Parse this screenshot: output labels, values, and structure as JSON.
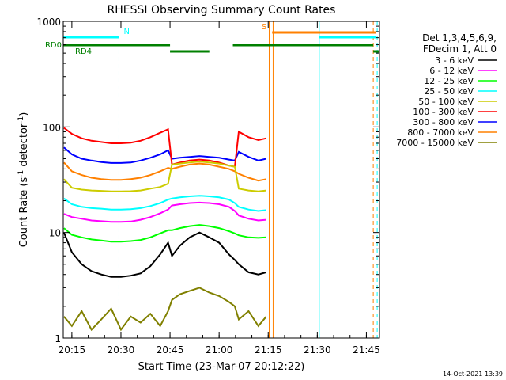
{
  "chart_data": {
    "type": "line",
    "title": "RHESSI Observing Summary Count Rates",
    "xlabel": "Start Time (23-Mar-07 20:12:22)",
    "ylabel_main": "Count Rate (s",
    "ylabel_sup1": "-1",
    "ylabel_mid": " detector",
    "ylabel_sup2": "-1",
    "ylabel_end": ")",
    "y_scale": "log",
    "ylim": [
      1,
      1000
    ],
    "xlim": [
      20.2062,
      21.8167
    ],
    "x_ticks": [
      {
        "value": 20.25,
        "label": "20:15"
      },
      {
        "value": 20.5,
        "label": "20:30"
      },
      {
        "value": 20.75,
        "label": "20:45"
      },
      {
        "value": 21.0,
        "label": "21:00"
      },
      {
        "value": 21.25,
        "label": "21:15"
      },
      {
        "value": 21.5,
        "label": "21:30"
      },
      {
        "value": 21.75,
        "label": "21:45"
      }
    ],
    "y_ticks": [
      {
        "value": 1,
        "label": "1"
      },
      {
        "value": 10,
        "label": "10"
      },
      {
        "value": 100,
        "label": "100"
      },
      {
        "value": 1000,
        "label": "1000"
      }
    ],
    "legend_header": [
      "Det 1,3,4,5,6,9,",
      "FDecim 1, Att 0"
    ],
    "legend_position": "right",
    "series": [
      {
        "name": "3 - 6 keV",
        "color": "#000000",
        "x": [
          20.21,
          20.25,
          20.3,
          20.35,
          20.4,
          20.45,
          20.5,
          20.55,
          20.6,
          20.65,
          20.7,
          20.74,
          20.76,
          20.8,
          20.85,
          20.9,
          20.95,
          21.0,
          21.05,
          21.08,
          21.1,
          21.15,
          21.2,
          21.24
        ],
        "y": [
          10,
          6.5,
          5,
          4.3,
          4,
          3.8,
          3.8,
          3.9,
          4.1,
          4.8,
          6.2,
          8,
          6,
          7.5,
          9,
          10,
          9,
          8,
          6.2,
          5.5,
          5,
          4.2,
          4,
          4.2
        ]
      },
      {
        "name": "6 - 12 keV",
        "color": "#ff00ff",
        "x": [
          20.21,
          20.25,
          20.3,
          20.35,
          20.4,
          20.45,
          20.5,
          20.55,
          20.6,
          20.65,
          20.7,
          20.74,
          20.76,
          20.8,
          20.85,
          20.9,
          20.95,
          21.0,
          21.05,
          21.08,
          21.1,
          21.15,
          21.2,
          21.24
        ],
        "y": [
          15,
          14,
          13.5,
          13,
          12.8,
          12.6,
          12.6,
          12.7,
          13.2,
          14,
          15.2,
          16.5,
          18,
          18.5,
          19,
          19.2,
          19,
          18.5,
          17.5,
          16,
          14.5,
          13.5,
          13,
          13.2
        ]
      },
      {
        "name": "12 - 25 keV",
        "color": "#00ff00",
        "x": [
          20.21,
          20.25,
          20.3,
          20.35,
          20.4,
          20.45,
          20.5,
          20.55,
          20.6,
          20.65,
          20.7,
          20.74,
          20.76,
          20.8,
          20.85,
          20.9,
          20.95,
          21.0,
          21.05,
          21.08,
          21.1,
          21.15,
          21.2,
          21.24
        ],
        "y": [
          11,
          9.5,
          9,
          8.6,
          8.4,
          8.2,
          8.2,
          8.3,
          8.5,
          9,
          9.8,
          10.5,
          10.5,
          11,
          11.5,
          11.8,
          11.5,
          11,
          10.3,
          9.8,
          9.4,
          9,
          8.9,
          9
        ]
      },
      {
        "name": "25 - 50 keV",
        "color": "#00ffff",
        "x": [
          20.21,
          20.25,
          20.3,
          20.35,
          20.4,
          20.45,
          20.5,
          20.55,
          20.6,
          20.65,
          20.7,
          20.74,
          20.76,
          20.8,
          20.85,
          20.9,
          20.95,
          21.0,
          21.05,
          21.08,
          21.1,
          21.15,
          21.2,
          21.24
        ],
        "y": [
          21,
          18.5,
          17.5,
          17,
          16.8,
          16.5,
          16.5,
          16.6,
          17,
          17.8,
          19,
          20.5,
          21,
          21.5,
          22,
          22.3,
          22,
          21.5,
          20.5,
          19,
          17.5,
          16.5,
          16,
          16.3
        ]
      },
      {
        "name": "50 - 100 keV",
        "color": "#cccc00",
        "x": [
          20.21,
          20.25,
          20.3,
          20.35,
          20.4,
          20.45,
          20.5,
          20.55,
          20.6,
          20.65,
          20.7,
          20.74,
          20.76,
          20.8,
          20.85,
          20.9,
          20.95,
          21.0,
          21.05,
          21.08,
          21.1,
          21.15,
          21.2,
          21.24
        ],
        "y": [
          32,
          26.5,
          25.5,
          25,
          24.8,
          24.5,
          24.5,
          24.6,
          25,
          26,
          27,
          29,
          44,
          45,
          46,
          47,
          46,
          45,
          43,
          42,
          26,
          25,
          24.5,
          25
        ]
      },
      {
        "name": "100 - 300 keV",
        "color": "#ff0000",
        "x": [
          20.21,
          20.25,
          20.3,
          20.35,
          20.4,
          20.45,
          20.5,
          20.55,
          20.6,
          20.65,
          20.7,
          20.74,
          20.76,
          20.8,
          20.85,
          20.9,
          20.95,
          21.0,
          21.05,
          21.08,
          21.1,
          21.15,
          21.2,
          21.24
        ],
        "y": [
          98,
          86,
          78,
          74,
          72,
          70,
          70,
          71,
          74,
          80,
          88,
          95,
          44,
          46,
          48,
          49,
          48,
          46,
          43,
          42,
          90,
          80,
          75,
          78
        ]
      },
      {
        "name": "300 - 800 keV",
        "color": "#0000ff",
        "x": [
          20.21,
          20.25,
          20.3,
          20.35,
          20.4,
          20.45,
          20.5,
          20.55,
          20.6,
          20.65,
          20.7,
          20.74,
          20.76,
          20.8,
          20.85,
          20.9,
          20.95,
          21.0,
          21.05,
          21.08,
          21.1,
          21.15,
          21.2,
          21.24
        ],
        "y": [
          64,
          55,
          50,
          48,
          46.5,
          45.5,
          45.5,
          46,
          48,
          51,
          55,
          60,
          50,
          51,
          52,
          53,
          52,
          51,
          49,
          48,
          58,
          52,
          48,
          50
        ]
      },
      {
        "name": "800 - 7000 keV",
        "color": "#ff8000",
        "x": [
          20.21,
          20.25,
          20.3,
          20.35,
          20.4,
          20.45,
          20.5,
          20.55,
          20.6,
          20.65,
          20.7,
          20.74,
          20.76,
          20.8,
          20.85,
          20.9,
          20.95,
          21.0,
          21.05,
          21.08,
          21.1,
          21.15,
          21.2,
          21.24
        ],
        "y": [
          46,
          38,
          35,
          33,
          32,
          31.5,
          31.5,
          32,
          33,
          35,
          38,
          41,
          40,
          42,
          44,
          45,
          44,
          42,
          40,
          38,
          36,
          33,
          31,
          32
        ]
      },
      {
        "name": "7000 - 15000 keV",
        "color": "#808000",
        "x": [
          20.21,
          20.25,
          20.3,
          20.35,
          20.4,
          20.45,
          20.5,
          20.55,
          20.6,
          20.65,
          20.7,
          20.74,
          20.76,
          20.8,
          20.85,
          20.9,
          20.95,
          21.0,
          21.05,
          21.08,
          21.1,
          21.15,
          21.2,
          21.24
        ],
        "y": [
          1.6,
          1.3,
          1.8,
          1.2,
          1.5,
          1.9,
          1.2,
          1.6,
          1.4,
          1.7,
          1.3,
          1.8,
          2.3,
          2.6,
          2.8,
          3,
          2.7,
          2.5,
          2.2,
          2,
          1.5,
          1.8,
          1.3,
          1.6
        ]
      }
    ],
    "flags": [
      {
        "label": "N",
        "color": "#00ffff",
        "segments": [
          [
            20.2062,
            20.49
          ],
          [
            21.51,
            21.8
          ]
        ]
      },
      {
        "label": "S",
        "color": "#ff8000",
        "segments": [
          [
            21.27,
            21.8
          ]
        ]
      },
      {
        "label": "RD0",
        "color": "#008000",
        "segments": [
          [
            20.2062,
            20.75
          ],
          [
            21.07,
            21.785
          ]
        ]
      },
      {
        "label": "RD4",
        "color": "#008000",
        "segments": [
          [
            20.75,
            20.95
          ],
          [
            21.785,
            21.8167
          ]
        ]
      }
    ],
    "vertical_lines": [
      {
        "x": 20.2062,
        "color": "#00ffff",
        "style": "solid"
      },
      {
        "x": 20.49,
        "color": "#00ffff",
        "style": "dashed"
      },
      {
        "x": 21.255,
        "color": "#ff8000",
        "style": "solid"
      },
      {
        "x": 21.275,
        "color": "#ff8000",
        "style": "solid"
      },
      {
        "x": 21.51,
        "color": "#00ffff",
        "style": "solid"
      },
      {
        "x": 21.785,
        "color": "#ff8000",
        "style": "dashed"
      },
      {
        "x": 21.805,
        "color": "#00ffff",
        "style": "dashed"
      }
    ],
    "footer_date": "14-Oct-2021 13:39"
  }
}
